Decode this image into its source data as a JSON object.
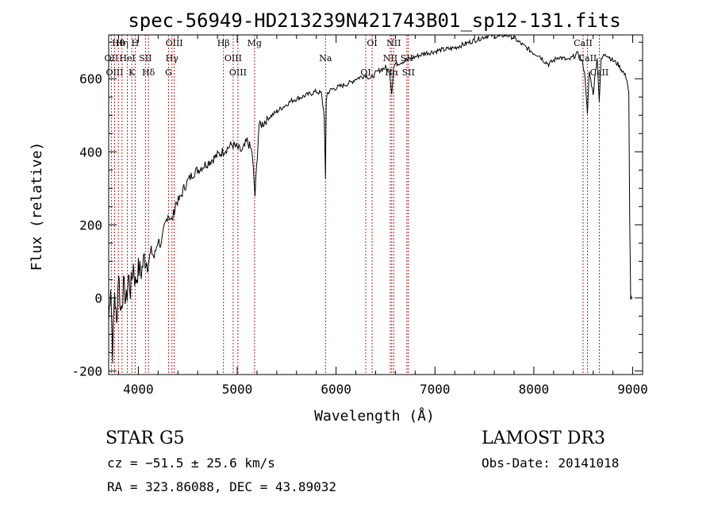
{
  "chart_data": {
    "type": "line",
    "title": "spec-56949-HD213239N421743B01_sp12-131.fits",
    "xlabel": "Wavelength (Å)",
    "ylabel": "Flux (relative)",
    "xlim": [
      3700,
      9100
    ],
    "ylim": [
      -210,
      720
    ],
    "xticks": [
      4000,
      5000,
      6000,
      7000,
      8000,
      9000
    ],
    "yticks": [
      -200,
      0,
      200,
      400,
      600
    ],
    "series": [
      {
        "name": "flux",
        "x": [
          3700,
          3720,
          3740,
          3760,
          3780,
          3800,
          3820,
          3850,
          3880,
          3900,
          3920,
          3950,
          3970,
          4000,
          4030,
          4060,
          4100,
          4130,
          4160,
          4200,
          4230,
          4260,
          4300,
          4340,
          4380,
          4420,
          4460,
          4500,
          4550,
          4600,
          4650,
          4700,
          4750,
          4800,
          4850,
          4900,
          4950,
          5000,
          5050,
          5100,
          5150,
          5180,
          5220,
          5270,
          5300,
          5350,
          5400,
          5450,
          5500,
          5550,
          5600,
          5650,
          5700,
          5750,
          5800,
          5850,
          5880,
          5893,
          5900,
          5910,
          5950,
          6000,
          6050,
          6100,
          6150,
          6200,
          6250,
          6300,
          6350,
          6400,
          6450,
          6500,
          6540,
          6563,
          6580,
          6600,
          6650,
          6700,
          6750,
          6800,
          6850,
          6900,
          6950,
          7000,
          7050,
          7100,
          7150,
          7200,
          7250,
          7300,
          7350,
          7400,
          7450,
          7500,
          7550,
          7600,
          7650,
          7700,
          7750,
          7800,
          7850,
          7900,
          7950,
          8000,
          8050,
          8100,
          8150,
          8200,
          8250,
          8300,
          8350,
          8400,
          8450,
          8498,
          8520,
          8542,
          8560,
          8600,
          8640,
          8662,
          8680,
          8720,
          8760,
          8800,
          8850,
          8900,
          8940,
          8960,
          8970,
          8980,
          8990,
          9000
        ],
        "values": [
          -60,
          40,
          -150,
          20,
          -80,
          80,
          -40,
          30,
          -10,
          60,
          20,
          90,
          40,
          80,
          70,
          110,
          95,
          130,
          110,
          160,
          140,
          190,
          230,
          210,
          260,
          270,
          300,
          320,
          340,
          350,
          360,
          370,
          380,
          390,
          400,
          410,
          420,
          410,
          400,
          430,
          400,
          280,
          470,
          480,
          490,
          500,
          510,
          520,
          530,
          540,
          545,
          550,
          555,
          560,
          565,
          560,
          500,
          320,
          540,
          560,
          570,
          575,
          580,
          585,
          590,
          600,
          605,
          610,
          600,
          615,
          625,
          630,
          620,
          560,
          630,
          640,
          645,
          650,
          655,
          660,
          665,
          670,
          672,
          675,
          678,
          680,
          682,
          685,
          690,
          695,
          700,
          705,
          710,
          715,
          720,
          718,
          715,
          720,
          718,
          712,
          700,
          690,
          680,
          670,
          665,
          650,
          640,
          650,
          660,
          655,
          650,
          660,
          670,
          640,
          600,
          500,
          620,
          560,
          660,
          540,
          650,
          670,
          660,
          650,
          640,
          620,
          600,
          560,
          200,
          0,
          0,
          0
        ]
      }
    ],
    "line_markers": [
      {
        "label": "Hθ",
        "wavelength": 3798
      },
      {
        "label": "OII",
        "wavelength": 3727
      },
      {
        "label": "OIII",
        "wavelength": 3760
      },
      {
        "label": "Hη",
        "wavelength": 3835
      },
      {
        "label": "HeI",
        "wavelength": 3889
      },
      {
        "label": "K",
        "wavelength": 3934
      },
      {
        "label": "H",
        "wavelength": 3968
      },
      {
        "label": "SII",
        "wavelength": 4072
      },
      {
        "label": "Hδ",
        "wavelength": 4102
      },
      {
        "label": "OIII",
        "wavelength": 4363
      },
      {
        "label": "Hγ",
        "wavelength": 4340
      },
      {
        "label": "G",
        "wavelength": 4305
      },
      {
        "label": "Hβ",
        "wavelength": 4861
      },
      {
        "label": "OIII",
        "wavelength": 4959
      },
      {
        "label": "OIII",
        "wavelength": 5007
      },
      {
        "label": "Mg",
        "wavelength": 5175
      },
      {
        "label": "Na",
        "wavelength": 5893
      },
      {
        "label": "OI",
        "wavelength": 6300
      },
      {
        "label": "OI",
        "wavelength": 6364
      },
      {
        "label": "NII",
        "wavelength": 6548
      },
      {
        "label": "Hα",
        "wavelength": 6563
      },
      {
        "label": "NII",
        "wavelength": 6583
      },
      {
        "label": "SII",
        "wavelength": 6716
      },
      {
        "label": "SII",
        "wavelength": 6731
      },
      {
        "label": "CaII",
        "wavelength": 8498
      },
      {
        "label": "CaII",
        "wavelength": 8542
      },
      {
        "label": "CaII",
        "wavelength": 8662
      }
    ]
  },
  "info": {
    "object_class": "STAR    G5",
    "survey": "LAMOST DR3",
    "cz": "cz = −51.5 ± 25.6 km/s",
    "obs_date": "Obs-Date: 20141018",
    "radec": "RA = 323.86088, DEC =  43.89032"
  },
  "colors": {
    "line": "#000000",
    "marker": "#b22222"
  }
}
